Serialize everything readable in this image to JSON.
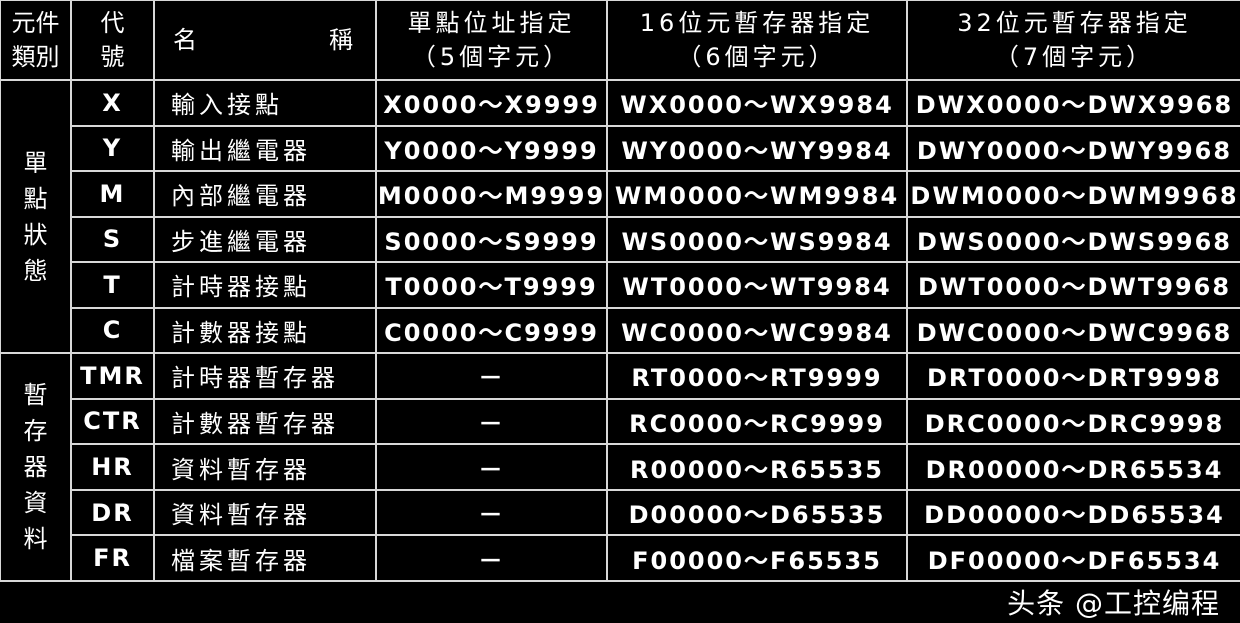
{
  "header": {
    "category": "元件\n類別",
    "code": "代\n號",
    "name_left": "名",
    "name_right": "稱",
    "single": "單點位址指定\n（5個字元）",
    "reg16": "16位元暫存器指定\n（6個字元）",
    "reg32": "32位元暫存器指定\n（7個字元）"
  },
  "groups": [
    {
      "label": "單\n點\n狀\n態",
      "rows": [
        {
          "code": "X",
          "name": "輸入接點",
          "single": "X0000～X9999",
          "reg16": "WX0000～WX9984",
          "reg32": "DWX0000～DWX9968"
        },
        {
          "code": "Y",
          "name": "輸出繼電器",
          "single": "Y0000～Y9999",
          "reg16": "WY0000～WY9984",
          "reg32": "DWY0000～DWY9968"
        },
        {
          "code": "M",
          "name": "內部繼電器",
          "single": "M0000～M9999",
          "reg16": "WM0000～WM9984",
          "reg32": "DWM0000～DWM9968"
        },
        {
          "code": "S",
          "name": "步進繼電器",
          "single": "S0000～S9999",
          "reg16": "WS0000～WS9984",
          "reg32": "DWS0000～DWS9968"
        },
        {
          "code": "T",
          "name": "計時器接點",
          "single": "T0000～T9999",
          "reg16": "WT0000～WT9984",
          "reg32": "DWT0000～DWT9968"
        },
        {
          "code": "C",
          "name": "計數器接點",
          "single": "C0000～C9999",
          "reg16": "WC0000～WC9984",
          "reg32": "DWC0000～DWC9968"
        }
      ]
    },
    {
      "label": "暫\n存\n器\n資\n料",
      "rows": [
        {
          "code": "TMR",
          "name": "計時器暫存器",
          "single": "－",
          "reg16": "RT0000～RT9999",
          "reg32": "DRT0000～DRT9998"
        },
        {
          "code": "CTR",
          "name": "計數器暫存器",
          "single": "－",
          "reg16": "RC0000～RC9999",
          "reg32": "DRC0000～DRC9998"
        },
        {
          "code": "HR",
          "name": "資料暫存器",
          "single": "－",
          "reg16": "R00000～R65535",
          "reg32": "DR00000～DR65534"
        },
        {
          "code": "DR",
          "name": "資料暫存器",
          "single": "－",
          "reg16": "D00000～D65535",
          "reg32": "DD00000～DD65534"
        },
        {
          "code": "FR",
          "name": "檔案暫存器",
          "single": "－",
          "reg16": "F00000～F65535",
          "reg32": "DF00000～DF65534"
        }
      ]
    }
  ],
  "watermark": "头条 @工控编程"
}
